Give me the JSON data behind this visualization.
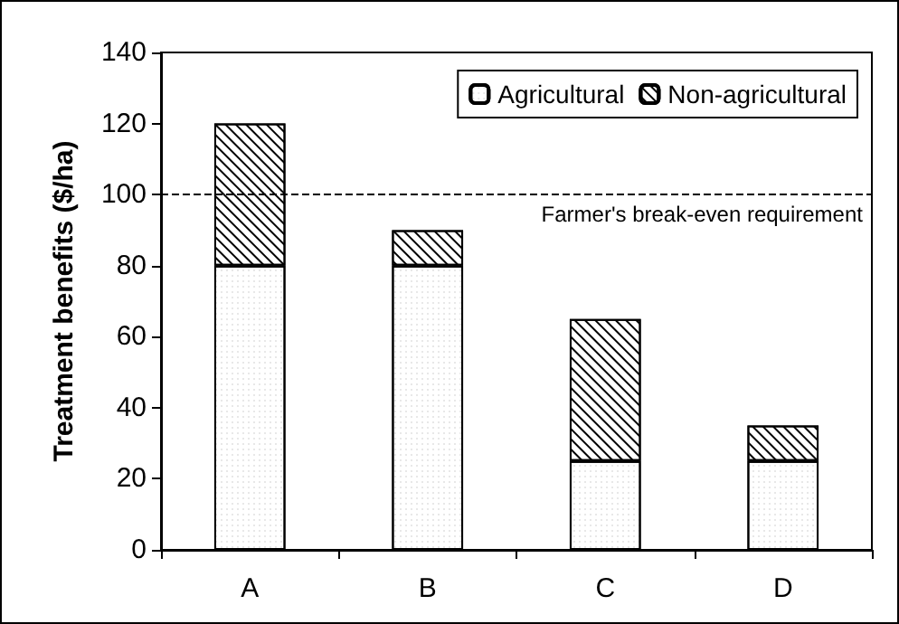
{
  "chart_data": {
    "type": "bar",
    "ylabel": "Treatment benefits ($/ha)",
    "categories": [
      "A",
      "B",
      "C",
      "D"
    ],
    "stacked": true,
    "series": [
      {
        "name": "Agricultural",
        "color": "#ffffff",
        "values": [
          80,
          80,
          25,
          25
        ]
      },
      {
        "name": "Non-agricultural",
        "color": "#ffffff",
        "values": [
          40,
          10,
          40,
          10
        ]
      }
    ],
    "ylim": [
      0,
      140
    ],
    "yticks": [
      0,
      20,
      40,
      60,
      80,
      100,
      120,
      140
    ],
    "grid": false,
    "legend": "top right",
    "ref_lines": [
      {
        "axis": "y",
        "value": 100,
        "label": "Farmer's break-even requirement",
        "line_style": "dashed",
        "color": "#000000"
      }
    ]
  }
}
